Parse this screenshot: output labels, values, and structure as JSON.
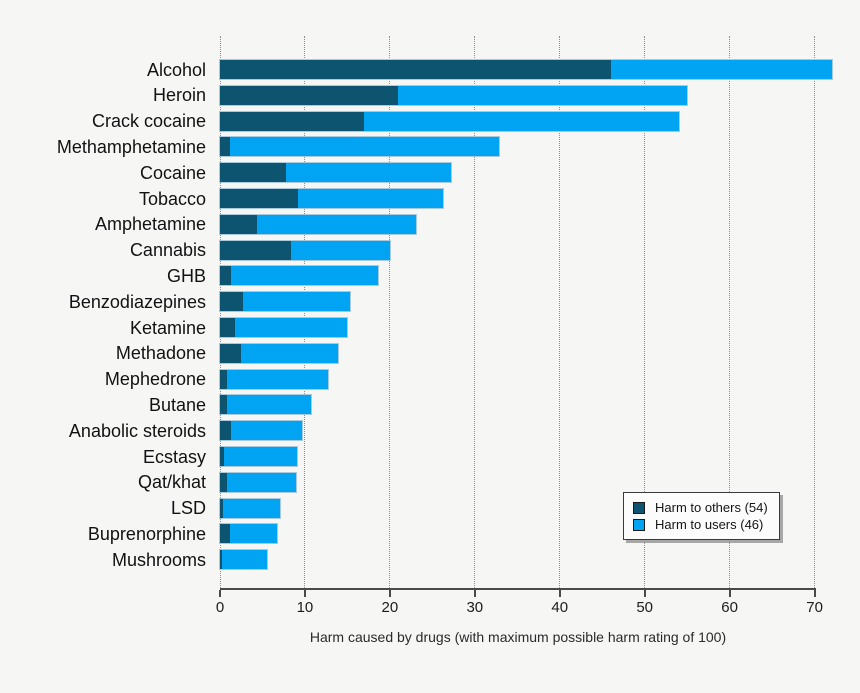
{
  "chart_data": {
    "type": "bar",
    "orientation": "horizontal",
    "stacked": true,
    "title": "",
    "xlabel": "Harm caused by drugs (with maximum possible harm rating of 100)",
    "ylabel": "",
    "xlim": [
      0,
      73.5
    ],
    "x_ticks": [
      0,
      10,
      20,
      30,
      40,
      50,
      60,
      70
    ],
    "grid": "vertical-dotted",
    "legend_position": "right-lower",
    "categories": [
      "Alcohol",
      "Heroin",
      "Crack cocaine",
      "Methamphetamine",
      "Cocaine",
      "Tobacco",
      "Amphetamine",
      "Cannabis",
      "GHB",
      "Benzodiazepines",
      "Ketamine",
      "Methadone",
      "Mephedrone",
      "Butane",
      "Anabolic steroids",
      "Ecstasy",
      "Qat/khat",
      "LSD",
      "Buprenorphine",
      "Mushrooms"
    ],
    "series": [
      {
        "name": "Harm to others (54)",
        "color": "#0d5470",
        "values": [
          46,
          21,
          17,
          1.2,
          7.8,
          9.2,
          4.4,
          8.3,
          1.3,
          2.7,
          1.8,
          2.5,
          0.8,
          0.8,
          1.3,
          0.5,
          0.8,
          0.3,
          1.2,
          0.2
        ]
      },
      {
        "name": "Harm to users (46)",
        "color": "#00a4f2",
        "values": [
          26,
          34,
          37,
          31.7,
          19.4,
          17.1,
          18.7,
          11.7,
          17.3,
          12.6,
          13.2,
          11.4,
          11.9,
          9.9,
          8.3,
          8.6,
          8.1,
          6.8,
          5.5,
          5.3
        ]
      }
    ],
    "totals": [
      72,
      55,
      54,
      32.9,
      27.2,
      26.3,
      23.1,
      20,
      18.6,
      15.3,
      15,
      13.9,
      12.7,
      10.7,
      9.6,
      9.1,
      8.9,
      7.1,
      6.7,
      5.5
    ]
  },
  "legend": {
    "entries": [
      {
        "label": "Harm to others (54)",
        "swatch": "dark-blue-square",
        "color": "#0d5470"
      },
      {
        "label": "Harm to users (46)",
        "swatch": "light-blue-square",
        "color": "#00a4f2"
      }
    ]
  },
  "axis": {
    "tick_labels": [
      "0",
      "10",
      "20",
      "30",
      "40",
      "50",
      "60",
      "70"
    ],
    "xlabel": "Harm caused by drugs (with maximum possible harm rating of 100)"
  },
  "colors": {
    "background": "#f6f6f5",
    "harm_to_others": "#0d5470",
    "harm_to_users": "#00a4f2",
    "bar_outline": "#a9c9dc",
    "gridline": "#8f8f8f",
    "axis": "#4a4a4a",
    "legend_background": "#fcfcfc"
  }
}
